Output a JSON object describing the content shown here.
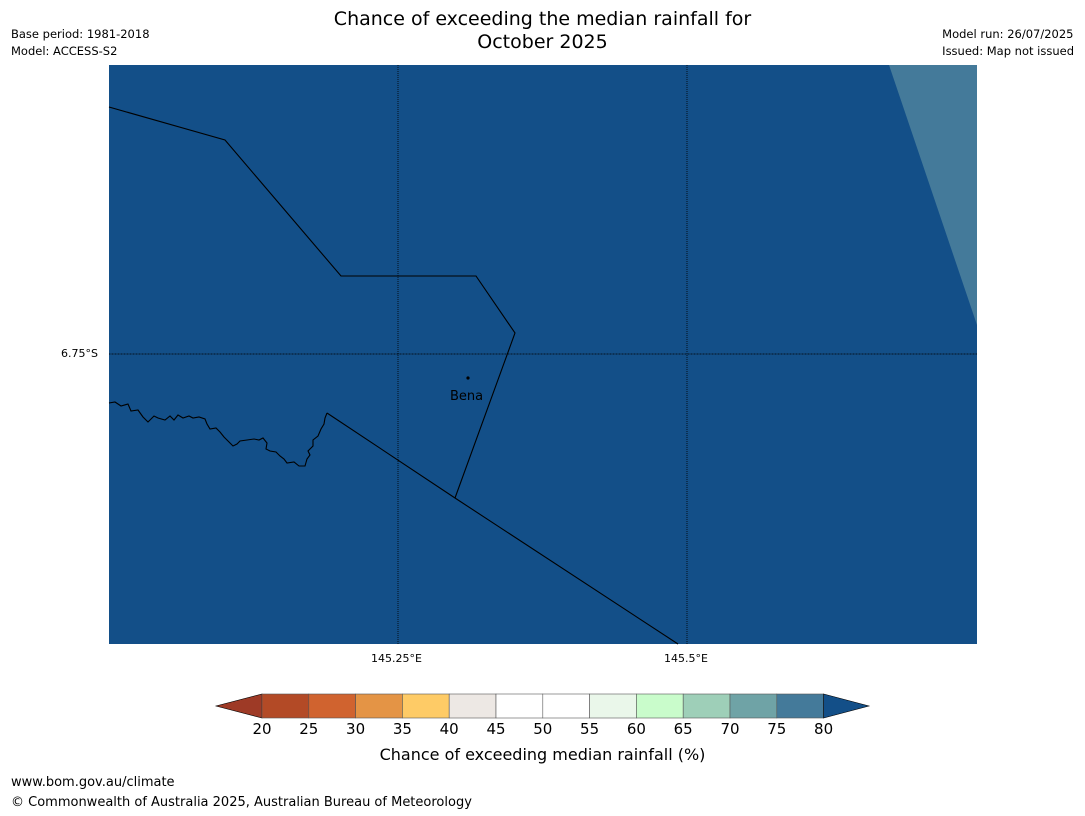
{
  "title_line1": "Chance of exceeding the median rainfall for",
  "title_line2": "October 2025",
  "meta_left": [
    "Base period: 1981-2018",
    "Model: ACCESS-S2"
  ],
  "meta_right": [
    "Model run: 26/07/2025",
    "Issued: Map not issued"
  ],
  "map": {
    "latitude_label": "6.75°S",
    "longitude_labels": [
      "145.25°E",
      "145.5°E"
    ],
    "place": {
      "name": "Bena"
    },
    "fill_color": "#134f88",
    "secondary_fill_color": "#447a9a"
  },
  "colorbar": {
    "label": "Chance of exceeding median rainfall (%)",
    "ticks": [
      "20",
      "25",
      "30",
      "35",
      "40",
      "45",
      "50",
      "55",
      "60",
      "65",
      "70",
      "75",
      "80"
    ],
    "colors": [
      "#9e3a26",
      "#b34a26",
      "#d0632f",
      "#e49445",
      "#fecb66",
      "#ede8e4",
      "#ffffff",
      "#ffffff",
      "#eaf7ea",
      "#c9fccb",
      "#9ecfb8",
      "#6fa3a6",
      "#447a9a",
      "#134f88"
    ]
  },
  "footer": {
    "url": "www.bom.gov.au/climate",
    "copyright": "© Commonwealth of Australia 2025, Australian Bureau of Meteorology"
  }
}
